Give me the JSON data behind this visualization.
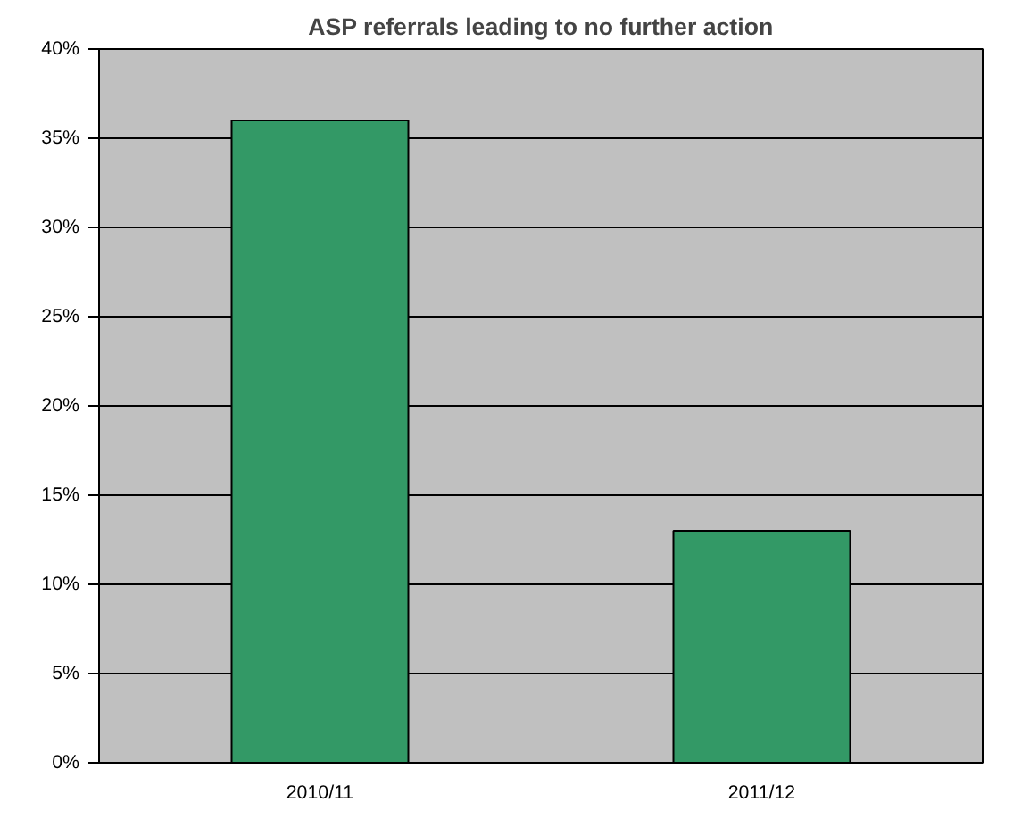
{
  "chart_data": {
    "type": "bar",
    "title": "ASP referrals leading to no further action",
    "categories": [
      "2010/11",
      "2011/12"
    ],
    "values": [
      0.36,
      0.13
    ],
    "color": "#339966",
    "ylim": [
      0,
      0.4
    ],
    "yticks": [
      {
        "value": 0,
        "label": "0%"
      },
      {
        "value": 0.05,
        "label": "5%"
      },
      {
        "value": 0.1,
        "label": "10%"
      },
      {
        "value": 0.15,
        "label": "15%"
      },
      {
        "value": 0.2,
        "label": "20%"
      },
      {
        "value": 0.25,
        "label": "25%"
      },
      {
        "value": 0.3,
        "label": "30%"
      },
      {
        "value": 0.35,
        "label": "35%"
      },
      {
        "value": 0.4,
        "label": "40%"
      }
    ],
    "grid": "y"
  }
}
